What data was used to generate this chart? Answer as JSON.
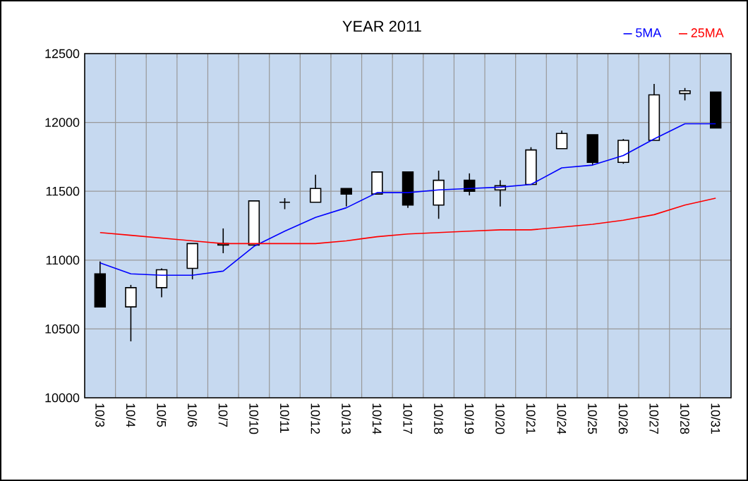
{
  "chart_data": {
    "type": "candlestick",
    "title": "YEAR 2011",
    "categories": [
      "10/3",
      "10/4",
      "10/5",
      "10/6",
      "10/7",
      "10/10",
      "10/11",
      "10/12",
      "10/13",
      "10/14",
      "10/17",
      "10/18",
      "10/19",
      "10/20",
      "10/21",
      "10/24",
      "10/25",
      "10/26",
      "10/27",
      "10/28",
      "10/31"
    ],
    "ohlc": [
      [
        10900,
        10990,
        10660,
        10660
      ],
      [
        10660,
        10820,
        10410,
        10800
      ],
      [
        10800,
        10940,
        10730,
        10930
      ],
      [
        10940,
        11120,
        10860,
        11120
      ],
      [
        11110,
        11230,
        11050,
        11120
      ],
      [
        11110,
        11430,
        11110,
        11430
      ],
      [
        11420,
        11450,
        11370,
        11420
      ],
      [
        11420,
        11620,
        11420,
        11520
      ],
      [
        11520,
        11520,
        11390,
        11480
      ],
      [
        11480,
        11640,
        11480,
        11640
      ],
      [
        11640,
        11640,
        11380,
        11400
      ],
      [
        11400,
        11650,
        11300,
        11580
      ],
      [
        11580,
        11630,
        11470,
        11500
      ],
      [
        11510,
        11580,
        11390,
        11540
      ],
      [
        11550,
        11820,
        11550,
        11800
      ],
      [
        11810,
        11940,
        11810,
        11920
      ],
      [
        11910,
        11910,
        11690,
        11710
      ],
      [
        11710,
        11880,
        11700,
        11870
      ],
      [
        11870,
        12280,
        11870,
        12200
      ],
      [
        12210,
        12250,
        12160,
        12230
      ],
      [
        12220,
        12220,
        11960,
        11960
      ]
    ],
    "series": [
      {
        "name": "5MA",
        "type": "line",
        "color": "#0000ff",
        "values": [
          10980,
          10900,
          10890,
          10890,
          10920,
          11100,
          11210,
          11310,
          11380,
          11490,
          11490,
          11510,
          11520,
          11530,
          11550,
          11670,
          11690,
          11760,
          11880,
          11990,
          11990
        ]
      },
      {
        "name": "25MA",
        "type": "line",
        "color": "#ff0000",
        "values": [
          11200,
          11180,
          11160,
          11140,
          11120,
          11120,
          11120,
          11120,
          11140,
          11170,
          11190,
          11200,
          11210,
          11220,
          11220,
          11240,
          11260,
          11290,
          11330,
          11400,
          11450
        ]
      }
    ],
    "ylim": [
      10000,
      12500
    ],
    "yticks": [
      10000,
      10500,
      11000,
      11500,
      12000,
      12500
    ],
    "grid": true,
    "legend": "top right"
  }
}
